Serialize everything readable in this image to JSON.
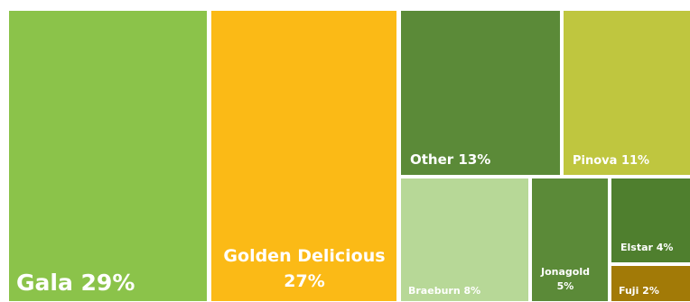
{
  "chart_data": {
    "type": "treemap",
    "title": "",
    "items": [
      {
        "name": "Gala",
        "value": 29,
        "label": "Gala 29%",
        "color": "#8BC34A"
      },
      {
        "name": "Golden Delicious",
        "value": 27,
        "label": [
          "Golden Delicious",
          "27%"
        ],
        "color": "#FBBA16"
      },
      {
        "name": "Other",
        "value": 13,
        "label": "Other 13%",
        "color": "#5B8A38"
      },
      {
        "name": "Pinova",
        "value": 11,
        "label": "Pinova 11%",
        "color": "#BFC63F"
      },
      {
        "name": "Braeburn",
        "value": 8,
        "label": "Braeburn 8%",
        "color": "#B7D897"
      },
      {
        "name": "Jonagold",
        "value": 5,
        "label": [
          "Jonagold",
          "5%"
        ],
        "color": "#5B8A38"
      },
      {
        "name": "Elstar",
        "value": 4,
        "label": "Elstar 4%",
        "color": "#4F7F2E"
      },
      {
        "name": "Fuji",
        "value": 2,
        "label": "Fuji 2%",
        "color": "#A27A07"
      }
    ]
  }
}
